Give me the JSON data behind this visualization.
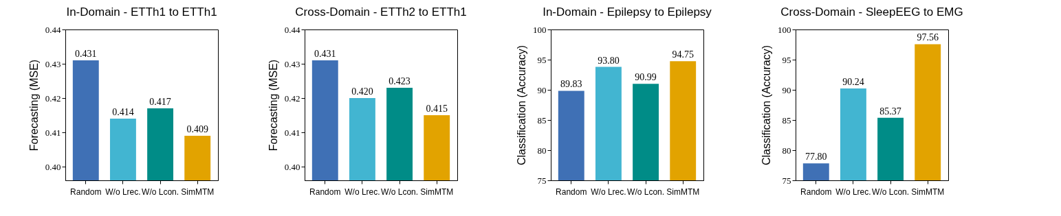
{
  "chart_data": [
    {
      "type": "bar",
      "title": "In-Domain - ETTh1 to ETTh1",
      "ylabel": "Forecasting (MSE)",
      "categories": [
        "Random",
        "W/o Lrec.",
        "W/o Lcon.",
        "SimMTM"
      ],
      "values": [
        0.431,
        0.414,
        0.417,
        0.409
      ],
      "colors": [
        "#3f70b5",
        "#42b5d1",
        "#008c87",
        "#e2a300"
      ],
      "value_labels": [
        "0.431",
        "0.414",
        "0.417",
        "0.409"
      ],
      "ylim": [
        0.396,
        0.44
      ],
      "yticks": [
        {
          "value": 0.4,
          "label": "0.40"
        },
        {
          "value": 0.41,
          "label": "0.41"
        },
        {
          "value": 0.42,
          "label": "0.42"
        },
        {
          "value": 0.43,
          "label": "0.43"
        },
        {
          "value": 0.44,
          "label": "0.44"
        }
      ],
      "grid": false
    },
    {
      "type": "bar",
      "title": "Cross-Domain - ETTh2 to ETTh1",
      "ylabel": "Forecasting (MSE)",
      "categories": [
        "Random",
        "W/o Lrec.",
        "W/o Lcon.",
        "SimMTM"
      ],
      "values": [
        0.431,
        0.42,
        0.423,
        0.415
      ],
      "colors": [
        "#3f70b5",
        "#42b5d1",
        "#008c87",
        "#e2a300"
      ],
      "value_labels": [
        "0.431",
        "0.420",
        "0.423",
        "0.415"
      ],
      "ylim": [
        0.396,
        0.44
      ],
      "yticks": [
        {
          "value": 0.4,
          "label": "0.40"
        },
        {
          "value": 0.41,
          "label": "0.41"
        },
        {
          "value": 0.42,
          "label": "0.42"
        },
        {
          "value": 0.43,
          "label": "0.43"
        },
        {
          "value": 0.44,
          "label": "0.44"
        }
      ],
      "grid": false
    },
    {
      "type": "bar",
      "title": "In-Domain - Epilepsy to Epilepsy",
      "ylabel": "Classification (Accuracy)",
      "categories": [
        "Random",
        "W/o Lrec.",
        "W/o Lcon.",
        "SimMTM"
      ],
      "values": [
        89.83,
        93.8,
        90.99,
        94.75
      ],
      "colors": [
        "#3f70b5",
        "#42b5d1",
        "#008c87",
        "#e2a300"
      ],
      "value_labels": [
        "89.83",
        "93.80",
        "90.99",
        "94.75"
      ],
      "ylim": [
        75,
        100
      ],
      "yticks": [
        75,
        80,
        85,
        90,
        95,
        100
      ],
      "grid": false
    },
    {
      "type": "bar",
      "title": "Cross-Domain - SleepEEG to EMG",
      "ylabel": "Classification (Accuracy)",
      "categories": [
        "Random",
        "W/o Lrec.",
        "W/o Lcon.",
        "SimMTM"
      ],
      "values": [
        77.8,
        90.24,
        85.37,
        97.56
      ],
      "colors": [
        "#3f70b5",
        "#42b5d1",
        "#008c87",
        "#e2a300"
      ],
      "value_labels": [
        "77.80",
        "90.24",
        "85.37",
        "97.56"
      ],
      "ylim": [
        75,
        100
      ],
      "yticks": [
        75,
        80,
        85,
        90,
        95,
        100
      ],
      "grid": false
    }
  ]
}
